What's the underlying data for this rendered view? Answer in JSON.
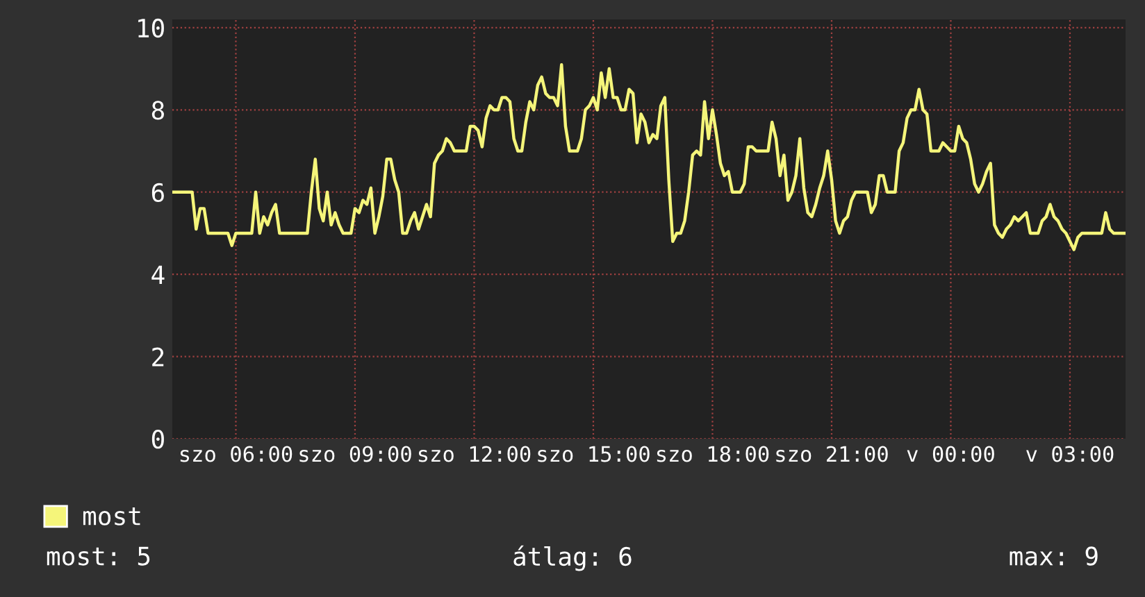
{
  "chart_data": {
    "type": "line",
    "categories": [
      null,
      null,
      null,
      null,
      null,
      null,
      null,
      null,
      null,
      null,
      null,
      null,
      null,
      null,
      null,
      null,
      "szo 06:00",
      null,
      null,
      null,
      null,
      null,
      null,
      null,
      null,
      null,
      null,
      null,
      null,
      null,
      null,
      null,
      null,
      null,
      null,
      null,
      null,
      null,
      null,
      null,
      null,
      null,
      null,
      null,
      null,
      null,
      "szo 09:00",
      null,
      null,
      null,
      null,
      null,
      null,
      null,
      null,
      null,
      null,
      null,
      null,
      null,
      null,
      null,
      null,
      null,
      null,
      null,
      null,
      null,
      null,
      null,
      null,
      null,
      null,
      null,
      null,
      null,
      "szo 12:00",
      null,
      null,
      null,
      null,
      null,
      null,
      null,
      null,
      null,
      null,
      null,
      null,
      null,
      null,
      null,
      null,
      null,
      null,
      null,
      null,
      null,
      null,
      null,
      null,
      null,
      null,
      null,
      null,
      null,
      "szo 15:00",
      null,
      null,
      null,
      null,
      null,
      null,
      null,
      null,
      null,
      null,
      null,
      null,
      null,
      null,
      null,
      null,
      null,
      null,
      null,
      null,
      null,
      null,
      null,
      null,
      null,
      null,
      null,
      null,
      null,
      "szo 18:00",
      null,
      null,
      null,
      null,
      null,
      null,
      null,
      null,
      null,
      null,
      null,
      null,
      null,
      null,
      null,
      null,
      null,
      null,
      null,
      null,
      null,
      null,
      null,
      null,
      null,
      null,
      null,
      null,
      null,
      "szo 21:00",
      null,
      null,
      null,
      null,
      null,
      null,
      null,
      null,
      null,
      null,
      null,
      null,
      null,
      null,
      null,
      null,
      null,
      null,
      null,
      null,
      null,
      null,
      null,
      null,
      null,
      null,
      null,
      null,
      null,
      "v 00:00",
      null,
      null,
      null,
      null,
      null,
      null,
      null,
      null,
      null,
      null,
      null,
      null,
      null,
      null,
      null,
      null,
      null,
      null,
      null,
      null,
      null,
      null,
      null,
      null,
      null,
      null,
      null,
      null,
      null,
      "v 03:00",
      null,
      null,
      null,
      null,
      null,
      null,
      null,
      null,
      null,
      null,
      null,
      null,
      null,
      null
    ],
    "series": [
      {
        "name": "most",
        "color": "#f5f57a",
        "values": [
          6.0,
          6.0,
          6.0,
          6.0,
          6.0,
          6.0,
          5.1,
          5.6,
          5.6,
          5.0,
          5.0,
          5.0,
          5.0,
          5.0,
          5.0,
          4.7,
          5.0,
          5.0,
          5.0,
          5.0,
          5.0,
          6.0,
          5.0,
          5.4,
          5.2,
          5.5,
          5.7,
          5.0,
          5.0,
          5.0,
          5.0,
          5.0,
          5.0,
          5.0,
          5.0,
          6.0,
          6.8,
          5.6,
          5.3,
          6.0,
          5.2,
          5.5,
          5.2,
          5.0,
          5.0,
          5.0,
          5.6,
          5.5,
          5.8,
          5.7,
          6.1,
          5.0,
          5.4,
          5.9,
          6.8,
          6.8,
          6.3,
          6.0,
          5.0,
          5.0,
          5.3,
          5.5,
          5.1,
          5.4,
          5.7,
          5.4,
          6.7,
          6.9,
          7.0,
          7.3,
          7.2,
          7.0,
          7.0,
          7.0,
          7.0,
          7.6,
          7.6,
          7.5,
          7.1,
          7.8,
          8.1,
          8.0,
          8.0,
          8.3,
          8.3,
          8.2,
          7.3,
          7.0,
          7.0,
          7.7,
          8.2,
          8.0,
          8.6,
          8.8,
          8.4,
          8.3,
          8.3,
          8.1,
          9.1,
          7.6,
          7.0,
          7.0,
          7.0,
          7.3,
          8.0,
          8.1,
          8.3,
          8.0,
          8.9,
          8.3,
          9.0,
          8.3,
          8.3,
          8.0,
          8.0,
          8.5,
          8.4,
          7.2,
          7.9,
          7.7,
          7.2,
          7.4,
          7.3,
          8.1,
          8.3,
          6.3,
          4.8,
          5.0,
          5.0,
          5.3,
          6.0,
          6.9,
          7.0,
          6.9,
          8.2,
          7.3,
          8.0,
          7.4,
          6.7,
          6.4,
          6.5,
          6.0,
          6.0,
          6.0,
          6.2,
          7.1,
          7.1,
          7.0,
          7.0,
          7.0,
          7.0,
          7.7,
          7.3,
          6.4,
          6.9,
          5.8,
          6.0,
          6.4,
          7.3,
          6.1,
          5.5,
          5.4,
          5.7,
          6.1,
          6.4,
          7.0,
          6.3,
          5.3,
          5.0,
          5.3,
          5.4,
          5.8,
          6.0,
          6.0,
          6.0,
          6.0,
          5.5,
          5.7,
          6.4,
          6.4,
          6.0,
          6.0,
          6.0,
          7.0,
          7.2,
          7.8,
          8.0,
          8.0,
          8.5,
          8.0,
          7.9,
          7.0,
          7.0,
          7.0,
          7.2,
          7.1,
          7.0,
          7.0,
          7.6,
          7.3,
          7.2,
          6.8,
          6.2,
          6.0,
          6.2,
          6.5,
          6.7,
          5.2,
          5.0,
          4.9,
          5.1,
          5.2,
          5.4,
          5.3,
          5.4,
          5.5,
          5.0,
          5.0,
          5.0,
          5.3,
          5.4,
          5.7,
          5.4,
          5.3,
          5.1,
          5.0,
          4.8,
          4.6,
          4.9,
          5.0,
          5.0,
          5.0,
          5.0,
          5.0,
          5.0,
          5.5,
          5.1,
          5.0,
          5.0,
          5.0,
          5.0
        ]
      }
    ],
    "ylim": [
      0,
      10.2
    ],
    "yticks": [
      0,
      2,
      4,
      6,
      8,
      10
    ],
    "grid": true,
    "legend": "bottom left",
    "marker": "none",
    "line_style": "solid",
    "annotations": [
      "most: 5",
      "átlag: 6",
      "max: 9"
    ]
  }
}
